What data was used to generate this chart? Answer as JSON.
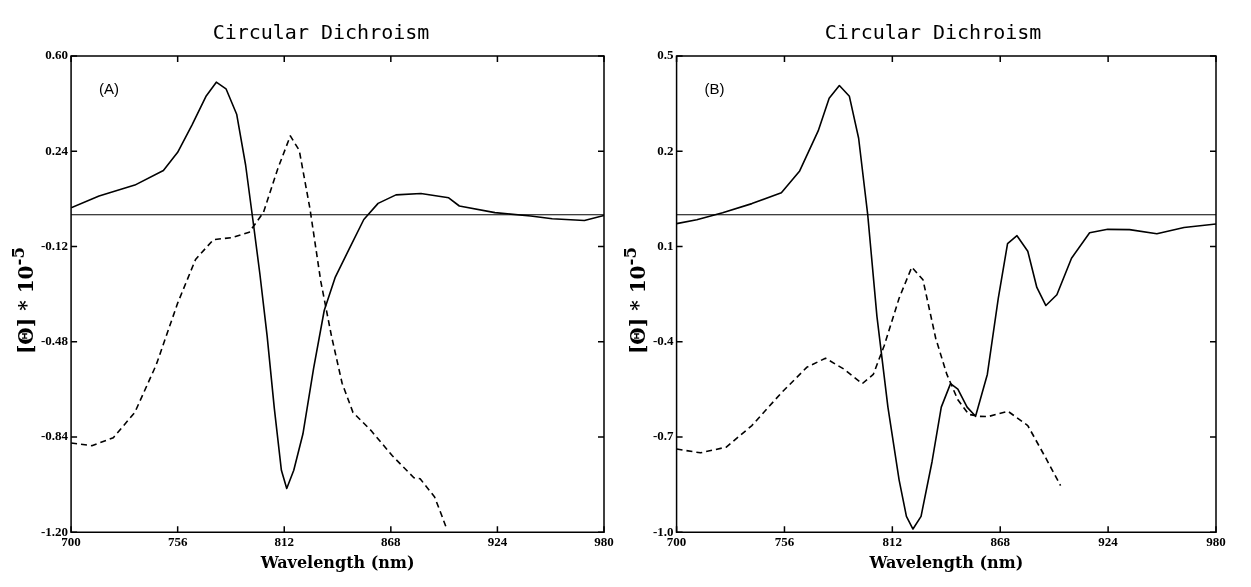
{
  "chart_data": [
    {
      "type": "line",
      "title": "Circular Dichroism",
      "xlabel": "Wavelength (nm)",
      "ylabel": "[Θ] * 10$^{-5}$",
      "annotations": [
        "(A)"
      ],
      "xlim": [
        700,
        980
      ],
      "xticks": [
        700,
        756,
        812,
        868,
        924,
        980
      ],
      "ylim": [
        -1.2,
        0.6
      ],
      "yticks": [
        {
          "value": 0.6,
          "label": "0.60"
        },
        0.24,
        -0.12,
        -0.48,
        -0.84,
        {
          "value": -1.2,
          "label": "-1.20"
        }
      ],
      "grid": false,
      "legend": false,
      "marker": "none",
      "ref_lines": [
        {
          "axis": "y",
          "value": 0,
          "color": "#000000",
          "line_style": "solid"
        }
      ],
      "series": [
        {
          "color": "#000000",
          "line_style": "solid",
          "x": [
            700,
            714.7,
            733.5,
            748.5,
            756,
            763.5,
            771,
            776.3,
            781.4,
            787,
            791.7,
            795.5,
            799.2,
            803,
            806.8,
            810.5,
            813.3,
            817,
            821.8,
            827.4,
            833,
            838.7,
            846.2,
            853.8,
            861.3,
            870.7,
            883.8,
            898.4,
            904,
            922.7,
            941.5,
            952.8,
            969.7,
            980
          ],
          "values": [
            0.026,
            0.071,
            0.112,
            0.167,
            0.236,
            0.339,
            0.449,
            0.501,
            0.476,
            0.38,
            0.188,
            -0.018,
            -0.224,
            -0.458,
            -0.733,
            -0.966,
            -1.035,
            -0.966,
            -0.829,
            -0.582,
            -0.362,
            -0.238,
            -0.128,
            -0.018,
            0.043,
            0.075,
            0.08,
            0.064,
            0.033,
            0.008,
            -0.005,
            -0.015,
            -0.022,
            -0.003
          ]
        },
        {
          "color": "#000000",
          "line_style": "dashed",
          "x": [
            700,
            710.9,
            722.2,
            733.5,
            744.7,
            756,
            765.4,
            774.8,
            784.2,
            793.6,
            801.1,
            808.6,
            815.2,
            819.9,
            825.5,
            831.2,
            836.8,
            842.4,
            848.1,
            857.5,
            868.8,
            880.1,
            883.4,
            891,
            894.7,
            897.5
          ],
          "values": [
            -0.863,
            -0.873,
            -0.843,
            -0.747,
            -0.568,
            -0.334,
            -0.169,
            -0.094,
            -0.087,
            -0.066,
            0.009,
            0.174,
            0.298,
            0.243,
            0.023,
            -0.252,
            -0.458,
            -0.637,
            -0.747,
            -0.815,
            -0.911,
            -0.994,
            -0.998,
            -1.067,
            -1.136,
            -1.19
          ]
        }
      ]
    },
    {
      "type": "line",
      "title": "Circular Dichroism",
      "xlabel": "Wavelength (nm)",
      "ylabel": "[Θ] * 10$^{-5}$",
      "annotations": [
        "(B)"
      ],
      "xlim": [
        700,
        980
      ],
      "xticks": [
        700,
        756,
        812,
        868,
        924,
        980
      ],
      "ylim": [
        -1.0,
        0.5
      ],
      "yticks": [
        0.5,
        0.2,
        {
          "value": -0.1,
          "label": "0.1"
        },
        -0.4,
        -0.7,
        {
          "value": -1.0,
          "label": "-1.0"
        }
      ],
      "grid": false,
      "legend": false,
      "marker": "none",
      "ref_lines": [
        {
          "axis": "y",
          "value": 0,
          "color": "#000000",
          "line_style": "solid"
        }
      ],
      "series": [
        {
          "color": "#000000",
          "line_style": "solid",
          "x": [
            700,
            710.5,
            723.9,
            739.1,
            754.4,
            763.9,
            773.5,
            779.2,
            784.5,
            789.7,
            794.5,
            799.2,
            804,
            809.7,
            815.5,
            819.3,
            822.7,
            826.9,
            832.6,
            837.4,
            842.2,
            846,
            850.8,
            855.2,
            861.3,
            867,
            871.8,
            876.7,
            882.3,
            887,
            891.7,
            897.4,
            905,
            914.4,
            923.8,
            935.1,
            949.3,
            963.4,
            980
          ],
          "values": [
            -0.028,
            -0.016,
            0.006,
            0.035,
            0.069,
            0.138,
            0.264,
            0.367,
            0.407,
            0.373,
            0.241,
            0.001,
            -0.32,
            -0.606,
            -0.835,
            -0.95,
            -0.99,
            -0.95,
            -0.778,
            -0.606,
            -0.532,
            -0.549,
            -0.606,
            -0.635,
            -0.503,
            -0.263,
            -0.091,
            -0.066,
            -0.115,
            -0.229,
            -0.286,
            -0.252,
            -0.137,
            -0.057,
            -0.046,
            -0.047,
            -0.06,
            -0.04,
            -0.029
          ]
        },
        {
          "color": "#000000",
          "line_style": "dashed",
          "x": [
            700,
            712.4,
            725.8,
            739.1,
            754.4,
            767.7,
            777.3,
            786.8,
            796.4,
            802.1,
            807.8,
            815.5,
            822.1,
            827.9,
            834.5,
            840.3,
            846,
            851.7,
            857.4,
            861.6,
            872,
            882.3,
            891.7,
            899.3
          ],
          "values": [
            -0.738,
            -0.75,
            -0.732,
            -0.664,
            -0.561,
            -0.48,
            -0.452,
            -0.486,
            -0.532,
            -0.503,
            -0.412,
            -0.263,
            -0.165,
            -0.205,
            -0.389,
            -0.503,
            -0.583,
            -0.629,
            -0.635,
            -0.636,
            -0.619,
            -0.664,
            -0.767,
            -0.853
          ]
        }
      ]
    }
  ]
}
